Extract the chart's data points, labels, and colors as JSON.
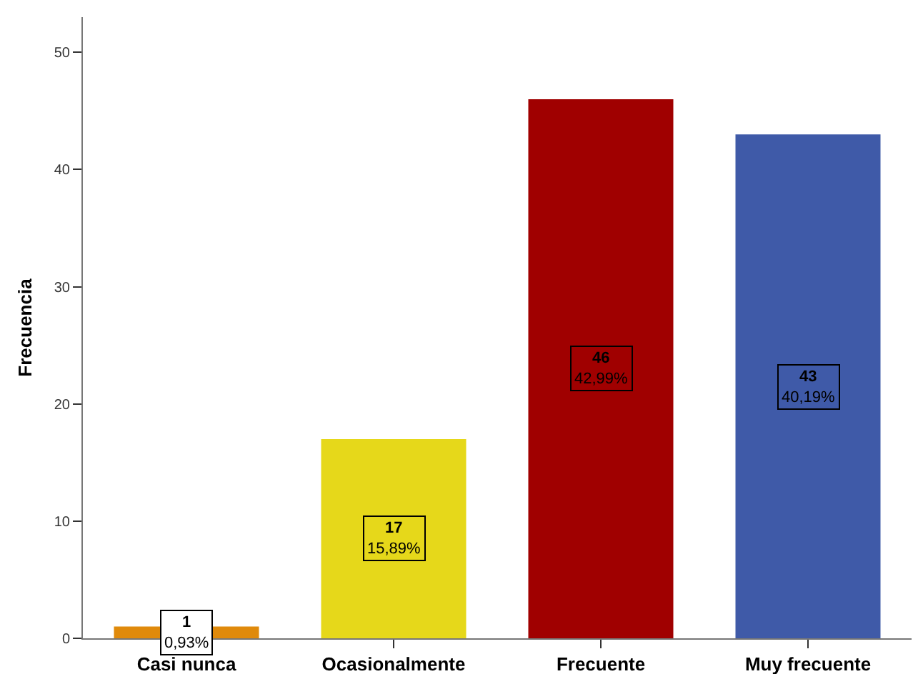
{
  "chart_data": {
    "type": "bar",
    "ylabel": "Frecuencia",
    "categories": [
      "Casi nunca",
      "Ocasionalmente",
      "Frecuente",
      "Muy frecuente"
    ],
    "values": [
      1,
      17,
      46,
      43
    ],
    "colors": [
      "#e08a0b",
      "#e6d81a",
      "#a00000",
      "#3f5aa8"
    ],
    "value_labels": [
      "1\n0,93%",
      "17\n15,89%",
      "46\n42,99%",
      "43\n40,19%"
    ],
    "ylim": [
      0,
      53
    ],
    "yticks": [
      0,
      10,
      20,
      30,
      40,
      50
    ],
    "grid": false
  }
}
